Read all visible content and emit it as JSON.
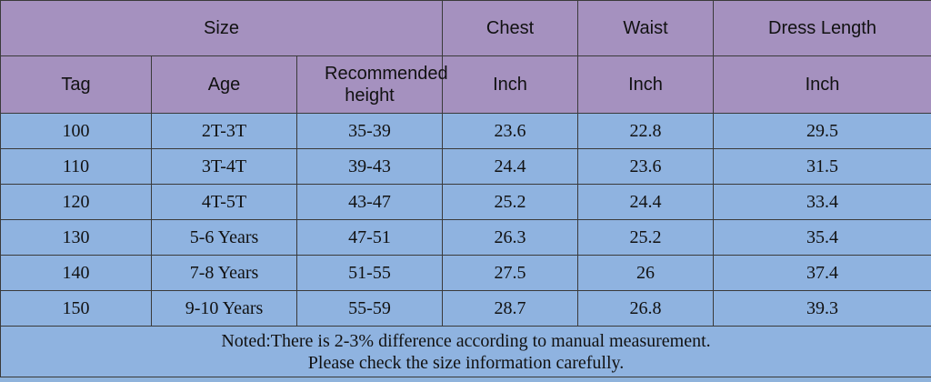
{
  "header": {
    "size": "Size",
    "chest": "Chest",
    "waist": "Waist",
    "dress_length": "Dress Length",
    "tag": "Tag",
    "age": "Age",
    "recommended_height": "Recommended height",
    "chest_unit": "Inch",
    "waist_unit": "Inch",
    "length_unit": "Inch"
  },
  "rows": [
    {
      "tag": "100",
      "age": "2T-3T",
      "height": "35-39",
      "chest": "23.6",
      "waist": "22.8",
      "length": "29.5"
    },
    {
      "tag": "110",
      "age": "3T-4T",
      "height": "39-43",
      "chest": "24.4",
      "waist": "23.6",
      "length": "31.5"
    },
    {
      "tag": "120",
      "age": "4T-5T",
      "height": "43-47",
      "chest": "25.2",
      "waist": "24.4",
      "length": "33.4"
    },
    {
      "tag": "130",
      "age": "5-6 Years",
      "height": "47-51",
      "chest": "26.3",
      "waist": "25.2",
      "length": "35.4"
    },
    {
      "tag": "140",
      "age": "7-8 Years",
      "height": "51-55",
      "chest": "27.5",
      "waist": "26",
      "length": "37.4"
    },
    {
      "tag": "150",
      "age": "9-10 Years",
      "height": "55-59",
      "chest": "28.7",
      "waist": "26.8",
      "length": "39.3"
    }
  ],
  "note": {
    "line1": "Noted:There is 2-3% difference according to manual measurement.",
    "line2": "Please check the size information carefully."
  },
  "colors": {
    "header_bg": "#a591bf",
    "body_bg": "#8fb3e0",
    "border": "#3a3a3a"
  }
}
